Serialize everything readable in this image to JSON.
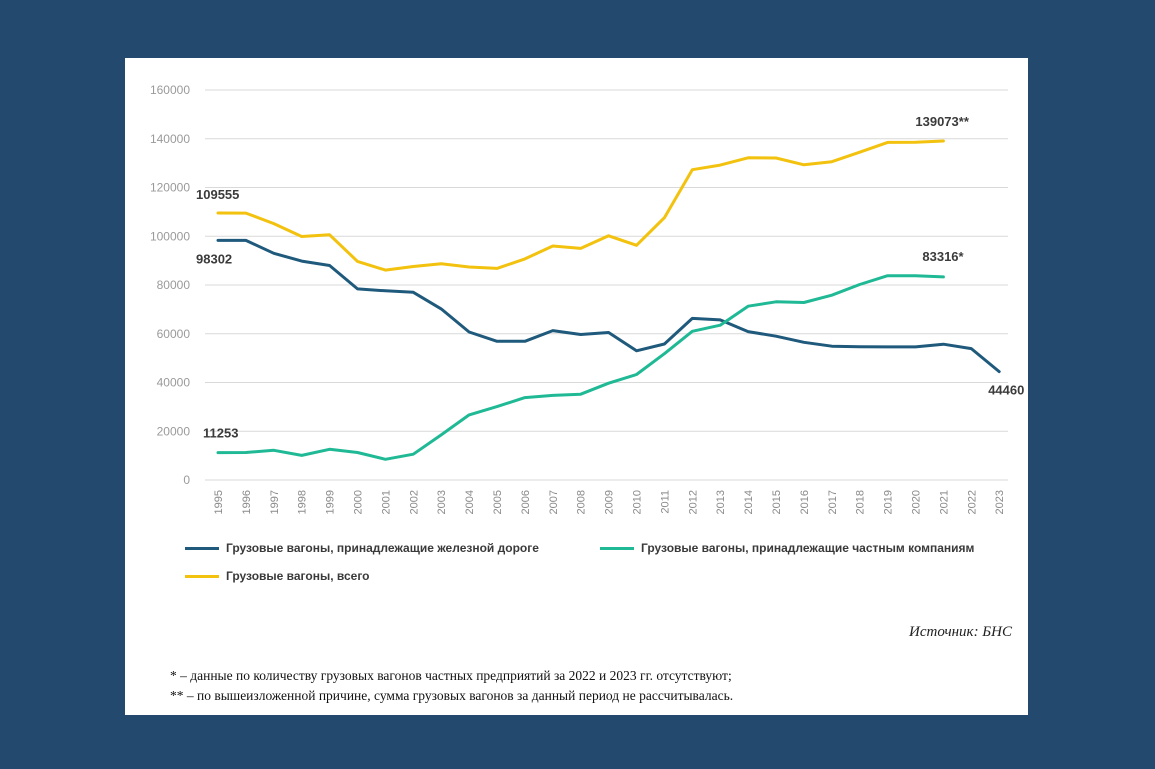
{
  "chart_data": {
    "type": "line",
    "title": "",
    "xlabel": "",
    "ylabel": "",
    "ylim": [
      0,
      160000
    ],
    "yticks": [
      0,
      20000,
      40000,
      60000,
      80000,
      100000,
      120000,
      140000,
      160000
    ],
    "ytick_labels": [
      "0",
      "20000",
      "40000",
      "60000",
      "80000",
      "100000",
      "120000",
      "140000",
      "160000"
    ],
    "grid": true,
    "categories": [
      "1995",
      "1996",
      "1997",
      "1998",
      "1999",
      "2000",
      "2001",
      "2002",
      "2003",
      "2004",
      "2005",
      "2006",
      "2007",
      "2008",
      "2009",
      "2010",
      "2011",
      "2012",
      "2013",
      "2014",
      "2015",
      "2016",
      "2017",
      "2018",
      "2019",
      "2020",
      "2021",
      "2022",
      "2023"
    ],
    "series": [
      {
        "name": "Грузовые вагоны, принадлежащие железной дороге",
        "color": "#1f5a7c",
        "values": [
          98302,
          98300,
          93000,
          89800,
          88000,
          78400,
          77600,
          77000,
          70200,
          60700,
          56900,
          56900,
          61300,
          59700,
          60500,
          53000,
          55800,
          66300,
          65700,
          60900,
          59000,
          56500,
          54900,
          54700,
          54600,
          54600,
          55700,
          53900,
          44460
        ]
      },
      {
        "name": "Грузовые вагоны, принадлежащие частным компаниям",
        "color": "#20b995",
        "values": [
          11253,
          11300,
          12200,
          10100,
          12600,
          11300,
          8500,
          10600,
          18500,
          26700,
          30100,
          33800,
          34700,
          35200,
          39700,
          43300,
          51800,
          61000,
          63500,
          71300,
          73100,
          72800,
          75800,
          80200,
          83800,
          83800,
          83316,
          null,
          null
        ]
      },
      {
        "name": "Грузовые вагоны, всего",
        "color": "#f2c20e",
        "values": [
          109555,
          109500,
          105200,
          99900,
          100600,
          89700,
          86100,
          87600,
          88700,
          87400,
          86800,
          90700,
          96000,
          95000,
          100200,
          96300,
          107600,
          127300,
          129200,
          132200,
          132100,
          129300,
          130600,
          134500,
          138500,
          138600,
          139073,
          null,
          null
        ]
      }
    ],
    "annotations": [
      {
        "text": "109555",
        "series": 2,
        "index": 0,
        "pos": "above"
      },
      {
        "text": "98302",
        "series": 0,
        "index": 0,
        "pos": "below"
      },
      {
        "text": "11253",
        "series": 1,
        "index": 0,
        "pos": "above"
      },
      {
        "text": "139073**",
        "series": 2,
        "index": 26,
        "pos": "above"
      },
      {
        "text": "83316*",
        "series": 1,
        "index": 26,
        "pos": "above"
      },
      {
        "text": "44460",
        "series": 0,
        "index": 28,
        "pos": "below"
      }
    ]
  },
  "legend": {
    "railway": "Грузовые вагоны, принадлежащие железной дороге",
    "private": "Грузовые вагоны, принадлежащие частным компаниям",
    "total": "Грузовые вагоны, всего"
  },
  "source": "Источник: БНС",
  "notes": {
    "note1": "* – данные по количеству грузовых вагонов частных предприятий за 2022 и 2023 гг. отсутствуют;",
    "note2": "** – по вышеизложенной причине, сумма грузовых вагонов за данный период не рассчитывалась."
  }
}
